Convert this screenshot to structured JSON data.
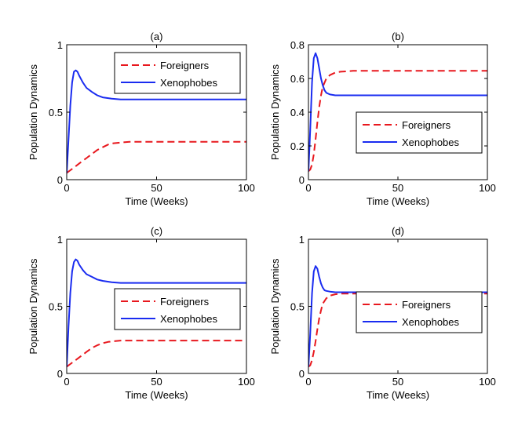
{
  "colors": {
    "foreigners": "#e8181e",
    "xenophobes": "#1a2cf0",
    "axes": "#000000",
    "background": "#ffffff"
  },
  "chart_data": [
    {
      "type": "line",
      "title": "(a)",
      "xlabel": "Time (Weeks)",
      "ylabel": "Population Dynamics",
      "xlim": [
        0,
        100
      ],
      "ylim": [
        0,
        1
      ],
      "xticks": [
        0,
        50,
        100
      ],
      "yticks": [
        0,
        0.5,
        1
      ],
      "xtick_labels": [
        "0",
        "50",
        "100"
      ],
      "ytick_labels": [
        "0",
        "0.5",
        "1"
      ],
      "grid": false,
      "legend_position": "top-right",
      "series": [
        {
          "name": "Foreigners",
          "style": "dashed",
          "color": "#e8181e",
          "x": [
            0,
            2,
            5,
            8,
            11,
            14,
            17,
            20,
            23,
            26,
            30,
            35,
            40,
            50,
            60,
            80,
            100
          ],
          "y": [
            0.05,
            0.07,
            0.1,
            0.13,
            0.16,
            0.19,
            0.22,
            0.24,
            0.26,
            0.27,
            0.275,
            0.28,
            0.28,
            0.28,
            0.28,
            0.28,
            0.28
          ]
        },
        {
          "name": "Xenophobes",
          "style": "solid",
          "color": "#1a2cf0",
          "x": [
            0,
            1,
            2,
            3,
            4,
            5,
            6,
            7,
            9,
            11,
            14,
            17,
            20,
            25,
            30,
            40,
            60,
            100
          ],
          "y": [
            0.05,
            0.3,
            0.55,
            0.72,
            0.8,
            0.81,
            0.8,
            0.77,
            0.72,
            0.68,
            0.65,
            0.625,
            0.61,
            0.6,
            0.595,
            0.595,
            0.595,
            0.595
          ]
        }
      ]
    },
    {
      "type": "line",
      "title": "(b)",
      "xlabel": "Time (Weeks)",
      "ylabel": "Population Dynamics",
      "xlim": [
        0,
        100
      ],
      "ylim": [
        0,
        0.8
      ],
      "xticks": [
        0,
        50,
        100
      ],
      "yticks": [
        0,
        0.2,
        0.4,
        0.6,
        0.8
      ],
      "xtick_labels": [
        "0",
        "50",
        "100"
      ],
      "ytick_labels": [
        "0",
        "0.2",
        "0.4",
        "0.6",
        "0.8"
      ],
      "grid": false,
      "legend_position": "center-right",
      "series": [
        {
          "name": "Foreigners",
          "style": "dashed",
          "color": "#e8181e",
          "x": [
            0,
            1,
            2,
            3,
            4,
            5,
            6,
            7,
            8,
            10,
            12,
            15,
            18,
            25,
            40,
            100
          ],
          "y": [
            0.05,
            0.06,
            0.09,
            0.15,
            0.24,
            0.34,
            0.43,
            0.5,
            0.55,
            0.6,
            0.62,
            0.635,
            0.64,
            0.645,
            0.645,
            0.645
          ]
        },
        {
          "name": "Xenophobes",
          "style": "solid",
          "color": "#1a2cf0",
          "x": [
            0,
            1,
            2,
            3,
            4,
            5,
            6,
            7,
            8,
            9,
            10,
            12,
            15,
            20,
            30,
            100
          ],
          "y": [
            0.05,
            0.3,
            0.58,
            0.72,
            0.75,
            0.72,
            0.66,
            0.6,
            0.56,
            0.53,
            0.515,
            0.505,
            0.5,
            0.5,
            0.5,
            0.5
          ]
        }
      ]
    },
    {
      "type": "line",
      "title": "(c)",
      "xlabel": "Time (Weeks)",
      "ylabel": "Population Dynamics",
      "xlim": [
        0,
        100
      ],
      "ylim": [
        0,
        1
      ],
      "xticks": [
        0,
        50,
        100
      ],
      "yticks": [
        0,
        0.5,
        1
      ],
      "xtick_labels": [
        "0",
        "50",
        "100"
      ],
      "ytick_labels": [
        "0",
        "0.5",
        "1"
      ],
      "grid": false,
      "legend_position": "center-right",
      "series": [
        {
          "name": "Foreigners",
          "style": "dashed",
          "color": "#e8181e",
          "x": [
            0,
            2,
            5,
            8,
            11,
            14,
            17,
            20,
            23,
            26,
            30,
            35,
            40,
            50,
            60,
            80,
            100
          ],
          "y": [
            0.05,
            0.07,
            0.1,
            0.13,
            0.16,
            0.19,
            0.21,
            0.225,
            0.235,
            0.24,
            0.245,
            0.245,
            0.245,
            0.245,
            0.245,
            0.245,
            0.245
          ]
        },
        {
          "name": "Xenophobes",
          "style": "solid",
          "color": "#1a2cf0",
          "x": [
            0,
            1,
            2,
            3,
            4,
            5,
            6,
            7,
            9,
            11,
            14,
            17,
            20,
            25,
            30,
            40,
            60,
            100
          ],
          "y": [
            0.05,
            0.35,
            0.6,
            0.76,
            0.83,
            0.85,
            0.84,
            0.81,
            0.77,
            0.74,
            0.72,
            0.7,
            0.69,
            0.68,
            0.675,
            0.675,
            0.675,
            0.675
          ]
        }
      ]
    },
    {
      "type": "line",
      "title": "(d)",
      "xlabel": "Time (Weeks)",
      "ylabel": "Population Dynamics",
      "xlim": [
        0,
        100
      ],
      "ylim": [
        0,
        1
      ],
      "xticks": [
        0,
        50,
        100
      ],
      "yticks": [
        0,
        0.5,
        1
      ],
      "xtick_labels": [
        "0",
        "50",
        "100"
      ],
      "ytick_labels": [
        "0",
        "0.5",
        "1"
      ],
      "grid": false,
      "legend_position": "center-right",
      "series": [
        {
          "name": "Foreigners",
          "style": "dashed",
          "color": "#e8181e",
          "x": [
            0,
            1,
            2,
            3,
            4,
            5,
            6,
            7,
            8,
            10,
            12,
            15,
            18,
            25,
            40,
            100
          ],
          "y": [
            0.05,
            0.06,
            0.1,
            0.16,
            0.24,
            0.33,
            0.41,
            0.47,
            0.52,
            0.56,
            0.58,
            0.59,
            0.595,
            0.595,
            0.595,
            0.595
          ]
        },
        {
          "name": "Xenophobes",
          "style": "solid",
          "color": "#1a2cf0",
          "x": [
            0,
            1,
            2,
            3,
            4,
            5,
            6,
            7,
            8,
            9,
            10,
            12,
            15,
            20,
            30,
            100
          ],
          "y": [
            0.05,
            0.3,
            0.6,
            0.76,
            0.8,
            0.78,
            0.72,
            0.67,
            0.64,
            0.62,
            0.615,
            0.61,
            0.605,
            0.605,
            0.605,
            0.605
          ]
        }
      ]
    }
  ]
}
